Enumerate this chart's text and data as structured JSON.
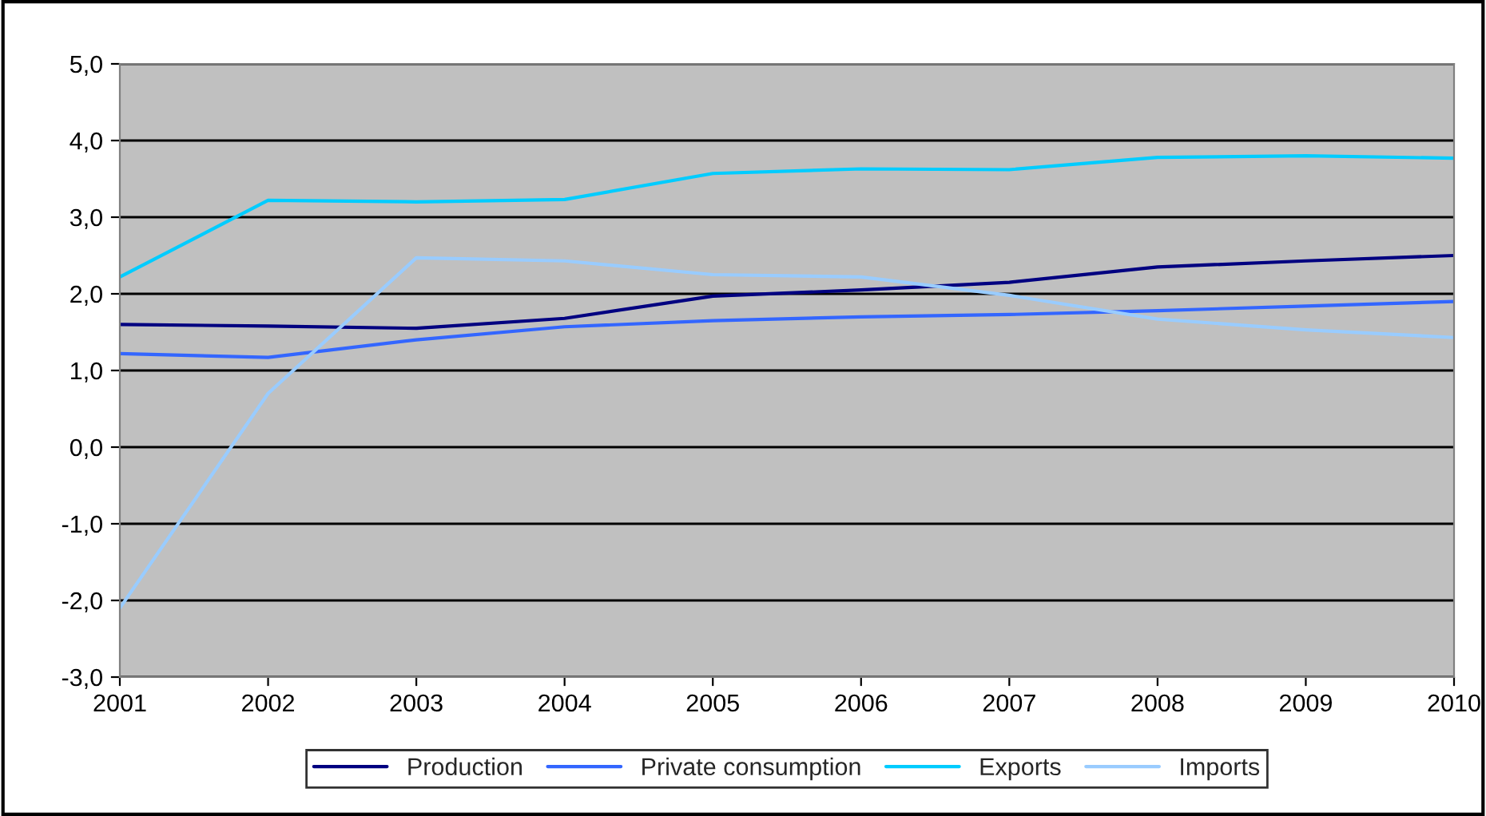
{
  "chart_data": {
    "type": "line",
    "x": [
      2001,
      2002,
      2003,
      2004,
      2005,
      2006,
      2007,
      2008,
      2009,
      2010
    ],
    "series": [
      {
        "name": "Production",
        "color": "#000080",
        "values": [
          1.6,
          1.58,
          1.55,
          1.68,
          1.97,
          2.05,
          2.15,
          2.35,
          2.43,
          2.5
        ]
      },
      {
        "name": "Private consumption",
        "color": "#3366ff",
        "values": [
          1.22,
          1.17,
          1.4,
          1.57,
          1.65,
          1.7,
          1.73,
          1.78,
          1.84,
          1.9
        ]
      },
      {
        "name": "Exports",
        "color": "#00ccff",
        "values": [
          2.22,
          3.22,
          3.2,
          3.23,
          3.57,
          3.63,
          3.62,
          3.78,
          3.8,
          3.77
        ]
      },
      {
        "name": "Imports",
        "color": "#99ccff",
        "values": [
          -2.1,
          0.7,
          2.47,
          2.43,
          2.25,
          2.22,
          1.98,
          1.67,
          1.53,
          1.43
        ]
      }
    ],
    "xlim": [
      2001,
      2010
    ],
    "xticks": [
      2001,
      2002,
      2003,
      2004,
      2005,
      2006,
      2007,
      2008,
      2009,
      2010
    ],
    "ylim": [
      -3,
      5
    ],
    "yticks": [
      {
        "value": -3,
        "label": "-3,0"
      },
      {
        "value": -2,
        "label": "-2,0"
      },
      {
        "value": -1,
        "label": "-1,0"
      },
      {
        "value": 0,
        "label": "0,0"
      },
      {
        "value": 1,
        "label": "1,0"
      },
      {
        "value": 2,
        "label": "2,0"
      },
      {
        "value": 3,
        "label": "3,0"
      },
      {
        "value": 4,
        "label": "4,0"
      },
      {
        "value": 5,
        "label": "5,0"
      }
    ],
    "grid": "y",
    "legend": "bottom",
    "marker": "none",
    "line_style": "solid"
  }
}
